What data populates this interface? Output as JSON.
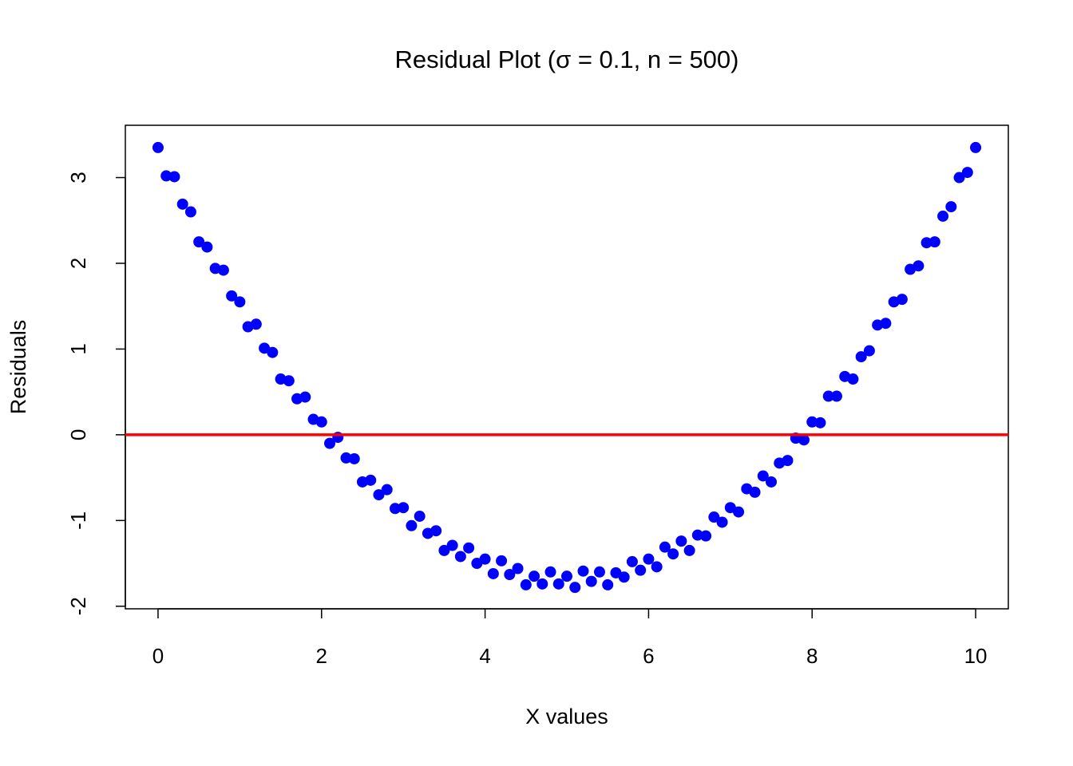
{
  "chart_data": {
    "type": "scatter",
    "title": "Residual Plot (σ = 0.1, n = 500)",
    "x_label": "X values",
    "y_label": "Residuals",
    "color": "#0000ff",
    "hline": {
      "y": 0,
      "color": "#ff0000"
    },
    "xlim": [
      -0.4,
      10.4
    ],
    "ylim": [
      -2.03,
      3.61
    ],
    "xticks": [
      0,
      2,
      4,
      6,
      8,
      10
    ],
    "yticks": [
      -2,
      -1,
      0,
      1,
      2,
      3
    ],
    "x": [
      0,
      0.1,
      0.2,
      0.3,
      0.4,
      0.5,
      0.6,
      0.7,
      0.8,
      0.9,
      1,
      1.1,
      1.2,
      1.3,
      1.4,
      1.5,
      1.6,
      1.7,
      1.8,
      1.9,
      2,
      2.1,
      2.2,
      2.3,
      2.4,
      2.5,
      2.6,
      2.7,
      2.8,
      2.9,
      3,
      3.1,
      3.2,
      3.3,
      3.4,
      3.5,
      3.6,
      3.7,
      3.8,
      3.9,
      4,
      4.1,
      4.2,
      4.3,
      4.4,
      4.5,
      4.6,
      4.7,
      4.8,
      4.9,
      5,
      5.1,
      5.2,
      5.3,
      5.4,
      5.5,
      5.6,
      5.7,
      5.8,
      5.9,
      6,
      6.1,
      6.2,
      6.3,
      6.4,
      6.5,
      6.6,
      6.7,
      6.8,
      6.9,
      7,
      7.1,
      7.2,
      7.3,
      7.4,
      7.5,
      7.6,
      7.7,
      7.8,
      7.9,
      8,
      8.1,
      8.2,
      8.3,
      8.4,
      8.5,
      8.6,
      8.7,
      8.8,
      8.9,
      9,
      9.1,
      9.2,
      9.3,
      9.4,
      9.5,
      9.6,
      9.7,
      9.8,
      9.9,
      10
    ],
    "values": [
      3.35,
      3.02,
      3.01,
      2.69,
      2.6,
      2.25,
      2.19,
      1.94,
      1.92,
      1.62,
      1.55,
      1.26,
      1.29,
      1.01,
      0.96,
      0.65,
      0.63,
      0.42,
      0.44,
      0.18,
      0.15,
      -0.1,
      -0.03,
      -0.27,
      -0.28,
      -0.55,
      -0.53,
      -0.7,
      -0.64,
      -0.86,
      -0.85,
      -1.06,
      -0.95,
      -1.15,
      -1.12,
      -1.35,
      -1.29,
      -1.42,
      -1.32,
      -1.5,
      -1.45,
      -1.62,
      -1.47,
      -1.63,
      -1.56,
      -1.75,
      -1.65,
      -1.74,
      -1.6,
      -1.74,
      -1.65,
      -1.78,
      -1.59,
      -1.71,
      -1.6,
      -1.75,
      -1.61,
      -1.66,
      -1.48,
      -1.58,
      -1.45,
      -1.54,
      -1.31,
      -1.39,
      -1.24,
      -1.35,
      -1.17,
      -1.18,
      -0.96,
      -1.02,
      -0.85,
      -0.9,
      -0.63,
      -0.67,
      -0.48,
      -0.55,
      -0.33,
      -0.3,
      -0.04,
      -0.06,
      0.15,
      0.14,
      0.45,
      0.45,
      0.68,
      0.65,
      0.91,
      0.98,
      1.28,
      1.3,
      1.55,
      1.58,
      1.93,
      1.97,
      2.24,
      2.25,
      2.55,
      2.66,
      3,
      3.06,
      3.35
    ]
  }
}
